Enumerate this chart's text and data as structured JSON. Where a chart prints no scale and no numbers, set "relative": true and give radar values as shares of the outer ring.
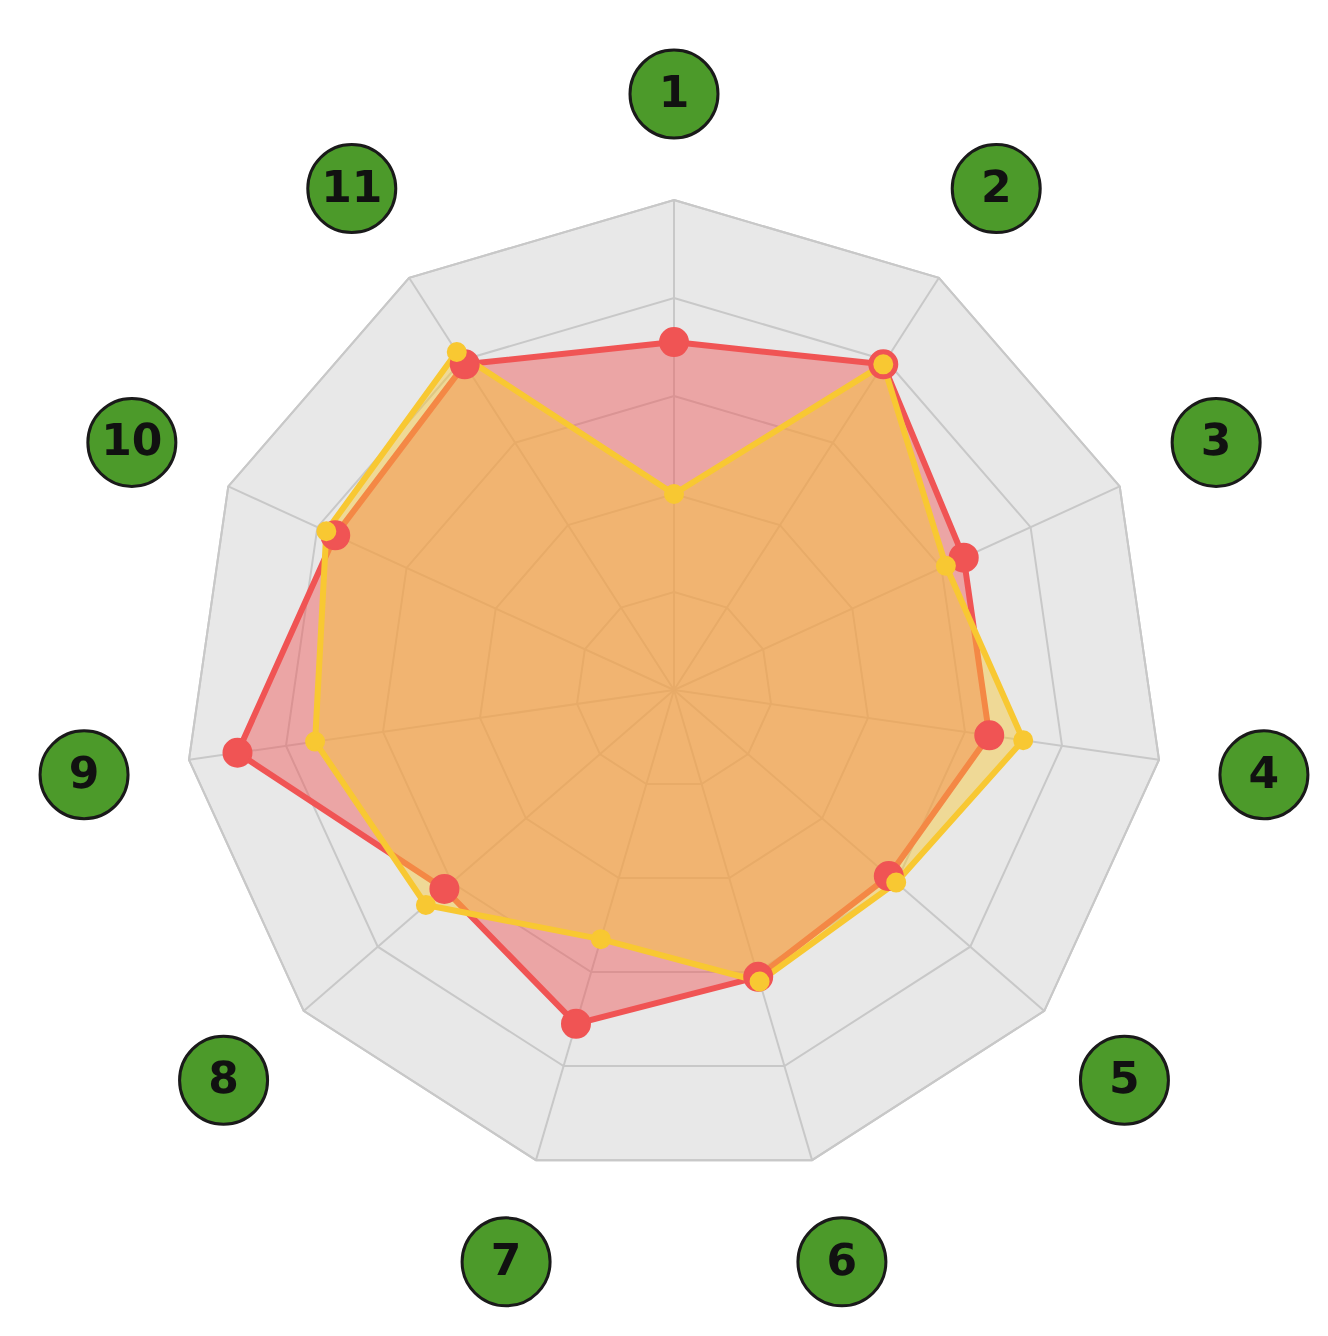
{
  "chart_data": {
    "type": "radar",
    "relative": true,
    "categories": [
      "1",
      "2",
      "3",
      "4",
      "5",
      "6",
      "7",
      "8",
      "9",
      "10",
      "11"
    ],
    "grid": true,
    "marker": "circle",
    "legend": false,
    "series": [
      {
        "color": "#f05454",
        "values": [
          0.71,
          0.79,
          0.65,
          0.65,
          0.58,
          0.61,
          0.71,
          0.62,
          0.9,
          0.76,
          0.79
        ]
      },
      {
        "color": "#f8c832",
        "values": [
          0.4,
          0.79,
          0.61,
          0.72,
          0.6,
          0.62,
          0.53,
          0.67,
          0.74,
          0.78,
          0.82
        ]
      }
    ]
  }
}
